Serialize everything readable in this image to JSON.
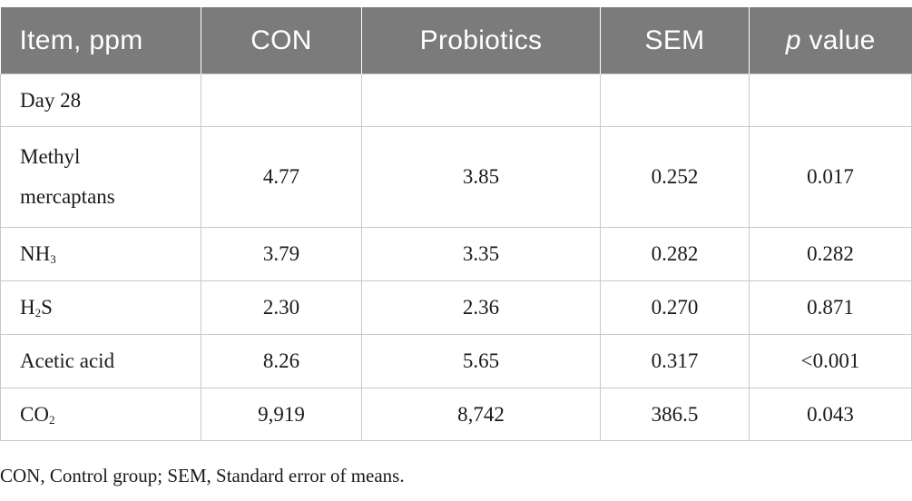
{
  "table": {
    "headers": {
      "item": "Item, ppm",
      "con": "CON",
      "probiotics": "Probiotics",
      "sem": "SEM",
      "p_value_italic": "p",
      "p_value_rest": " value"
    },
    "day_label": "Day 28",
    "rows": [
      {
        "item_line1": "Methyl",
        "item_line2": "mercaptans",
        "con": "4.77",
        "probiotics": "3.85",
        "sem": "0.252",
        "p": "0.017"
      },
      {
        "item_base": "NH",
        "item_sub": "3",
        "item_tail": "",
        "con": "3.79",
        "probiotics": "3.35",
        "sem": "0.282",
        "p": "0.282"
      },
      {
        "item_base": "H",
        "item_sub": "2",
        "item_tail": "S",
        "con": "2.30",
        "probiotics": "2.36",
        "sem": "0.270",
        "p": "0.871"
      },
      {
        "item": "Acetic acid",
        "con": "8.26",
        "probiotics": "5.65",
        "sem": "0.317",
        "p": "<0.001"
      },
      {
        "item_base": "CO",
        "item_sub": "2",
        "item_tail": "",
        "con": "9,919",
        "probiotics": "8,742",
        "sem": "386.5",
        "p": "0.043"
      }
    ]
  },
  "footnote": "CON, Control group; SEM, Standard error of means."
}
